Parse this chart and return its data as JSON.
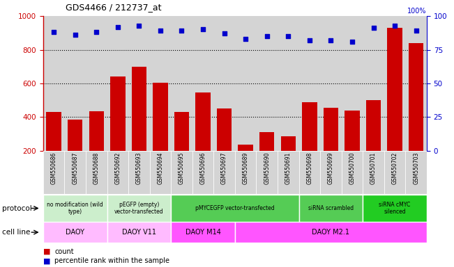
{
  "title": "GDS4466 / 212737_at",
  "samples": [
    "GSM550686",
    "GSM550687",
    "GSM550688",
    "GSM550692",
    "GSM550693",
    "GSM550694",
    "GSM550695",
    "GSM550696",
    "GSM550697",
    "GSM550689",
    "GSM550690",
    "GSM550691",
    "GSM550698",
    "GSM550699",
    "GSM550700",
    "GSM550701",
    "GSM550702",
    "GSM550703"
  ],
  "counts": [
    430,
    385,
    435,
    640,
    700,
    605,
    430,
    545,
    450,
    235,
    310,
    285,
    490,
    455,
    440,
    500,
    930,
    840
  ],
  "percentiles": [
    88,
    86,
    88,
    92,
    93,
    89,
    89,
    90,
    87,
    83,
    85,
    85,
    82,
    82,
    81,
    91,
    93,
    89
  ],
  "bar_color": "#cc0000",
  "dot_color": "#0000cc",
  "ylim_left": [
    200,
    1000
  ],
  "ylim_right": [
    0,
    100
  ],
  "yticks_left": [
    200,
    400,
    600,
    800,
    1000
  ],
  "yticks_right": [
    0,
    25,
    50,
    75,
    100
  ],
  "grid_values": [
    400,
    600,
    800
  ],
  "protocol_groups": [
    {
      "label": "no modification (wild\ntype)",
      "start": 0,
      "end": 3,
      "color": "#cceecc"
    },
    {
      "label": "pEGFP (empty)\nvector-transfected",
      "start": 3,
      "end": 6,
      "color": "#cceecc"
    },
    {
      "label": "pMYCEGFP vector-transfected",
      "start": 6,
      "end": 12,
      "color": "#55cc55"
    },
    {
      "label": "siRNA scrambled",
      "start": 12,
      "end": 15,
      "color": "#55cc55"
    },
    {
      "label": "siRNA cMYC\nsilenced",
      "start": 15,
      "end": 18,
      "color": "#22cc22"
    }
  ],
  "cellline_groups": [
    {
      "label": "DAOY",
      "start": 0,
      "end": 3,
      "color": "#ffbbff"
    },
    {
      "label": "DAOY V11",
      "start": 3,
      "end": 6,
      "color": "#ffbbff"
    },
    {
      "label": "DAOY M14",
      "start": 6,
      "end": 9,
      "color": "#ff55ff"
    },
    {
      "label": "DAOY M2.1",
      "start": 9,
      "end": 18,
      "color": "#ff55ff"
    }
  ],
  "protocol_label": "protocol",
  "cellline_label": "cell line",
  "legend_count": "count",
  "legend_pct": "percentile rank within the sample",
  "axis_color_left": "#cc0000",
  "axis_color_right": "#0000cc",
  "tick_bg_colors": [
    "#cccccc",
    "#cccccc",
    "#cccccc",
    "#cccccc",
    "#cccccc",
    "#cccccc",
    "#cccccc",
    "#cccccc",
    "#cccccc",
    "#cccccc",
    "#cccccc",
    "#cccccc",
    "#cccccc",
    "#cccccc",
    "#cccccc",
    "#cccccc",
    "#cccccc",
    "#cccccc"
  ]
}
